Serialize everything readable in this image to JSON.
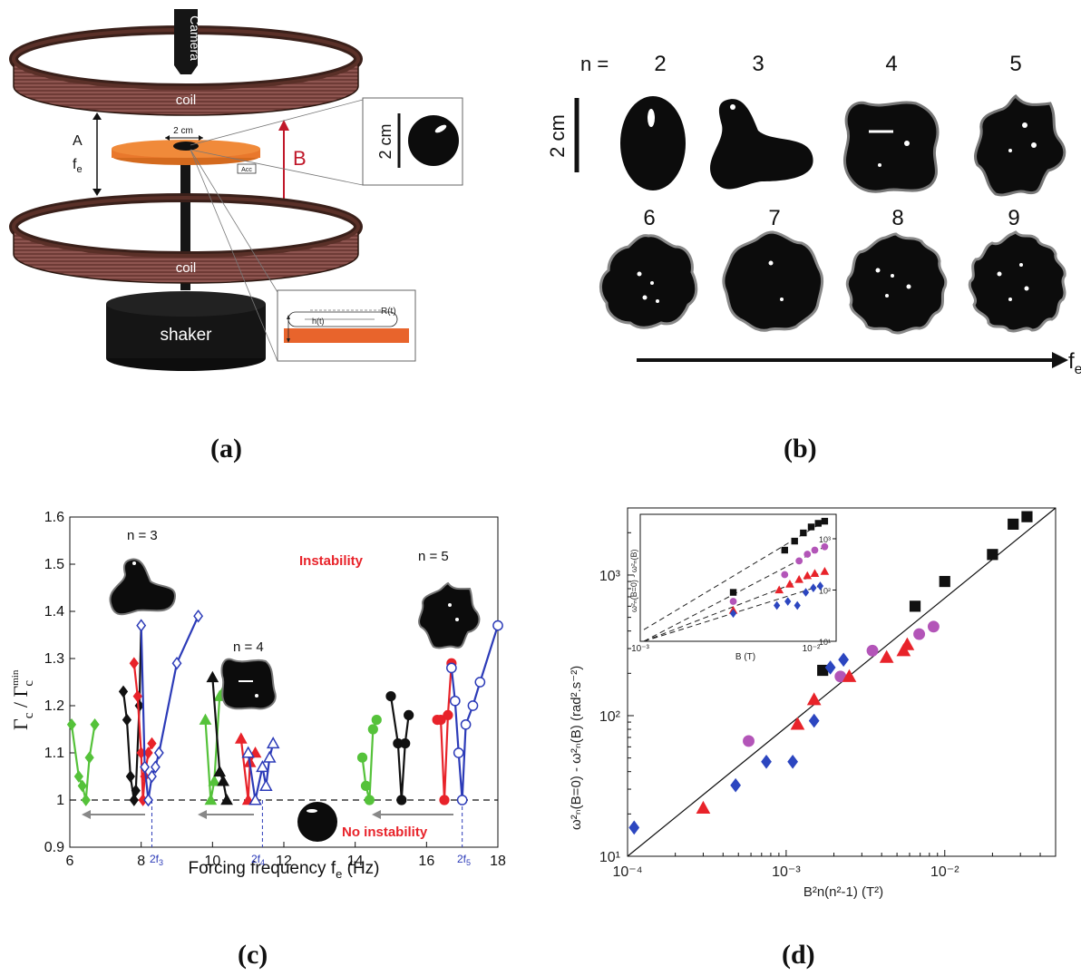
{
  "panels": {
    "a": {
      "caption": "(a)",
      "camera": "Camera",
      "coil_top": "coil",
      "coil_bottom": "coil",
      "shaker": "shaker",
      "plate_size": "2 cm",
      "label_A": "A",
      "label_fe": "f",
      "label_fe_sub": "e",
      "label_B": "B",
      "acc": "Acc",
      "inset_scale": "2 cm",
      "label_h": "h(t)",
      "label_R": "R(t)"
    },
    "b": {
      "caption": "(b)",
      "n_label": "n =",
      "scale": "2 cm",
      "modes_row1": [
        "2",
        "3",
        "4",
        "5"
      ],
      "modes_row2": [
        "6",
        "7",
        "8",
        "9"
      ],
      "axis_label": "f",
      "axis_label_sub": "e"
    },
    "c": {
      "caption": "(c)",
      "xlabel": "Forcing frequency f",
      "xlabel_sub": "e",
      "xlabel_unit": " (Hz)",
      "ylabel_main": "Γ",
      "ylabel_sub": "c",
      "ylabel_sep": " / Γ",
      "ylabel_sup": "min",
      "ylabel_sub2": "c",
      "yticks": [
        "0.9",
        "1",
        "1.1",
        "1.2",
        "1.3",
        "1.4",
        "1.5",
        "1.6"
      ],
      "xticks": [
        "6",
        "8",
        "10",
        "12",
        "14",
        "16",
        "18"
      ],
      "instability": "Instability",
      "no_instability": "No instability",
      "n3": "n = 3",
      "n4": "n = 4",
      "n5": "n = 5",
      "mark_2f3": "2f",
      "mark_2f3_sub": "3",
      "mark_2f4": "2f",
      "mark_2f4_sub": "4",
      "mark_2f5": "2f",
      "mark_2f5_sub": "5",
      "colors": {
        "green": "#55c23a",
        "black": "#111111",
        "red": "#e8232a",
        "blue": "#2c3bb8"
      }
    },
    "d": {
      "caption": "(d)",
      "xlabel": "B²n(n²-1)  (T²)",
      "ylabel": "ω²ₙ(B=0) - ω²ₙ(B)    (rad².s⁻²)",
      "xticks": [
        "10⁻⁴",
        "10⁻³",
        "10⁻²"
      ],
      "yticks": [
        "10¹",
        "10²",
        "10³"
      ],
      "inset": {
        "xlabel": "B  (T)",
        "ylabel": "ω²ₙ(B=0) - ω²ₙ(B)",
        "xticks": [
          "10⁻³",
          "10⁻²"
        ],
        "yticks": [
          "10¹",
          "10²",
          "10³"
        ]
      },
      "colors": {
        "black": "#111111",
        "magenta": "#b355b8",
        "red": "#e8232a",
        "blue": "#2c46c0"
      }
    }
  },
  "chart_data": [
    {
      "type": "line",
      "title": "",
      "xlabel": "Forcing frequency fe (Hz)",
      "ylabel": "Γc / Γc^min",
      "xlim": [
        6,
        18
      ],
      "ylim": [
        0.9,
        1.6
      ],
      "xticks": [
        6,
        8,
        10,
        12,
        14,
        16,
        18
      ],
      "yticks": [
        0.9,
        1.0,
        1.1,
        1.2,
        1.3,
        1.4,
        1.5,
        1.6
      ],
      "reference_line": {
        "y": 1.0,
        "style": "dashed"
      },
      "series": [
        {
          "color": "#55c23a",
          "marker": "diamond",
          "points": [
            [
              6.05,
              1.16
            ],
            [
              6.25,
              1.05
            ],
            [
              6.35,
              1.03
            ],
            [
              6.45,
              1.0
            ],
            [
              6.55,
              1.09
            ],
            [
              6.7,
              1.16
            ]
          ]
        },
        {
          "color": "#111111",
          "marker": "diamond",
          "points": [
            [
              7.5,
              1.23
            ],
            [
              7.6,
              1.17
            ],
            [
              7.7,
              1.05
            ],
            [
              7.8,
              1.0
            ],
            [
              7.85,
              1.02
            ],
            [
              7.95,
              1.2
            ],
            [
              8.0,
              1.37
            ]
          ]
        },
        {
          "color": "#e8232a",
          "marker": "diamond",
          "points": [
            [
              7.8,
              1.29
            ],
            [
              7.9,
              1.22
            ],
            [
              8.0,
              1.1
            ],
            [
              8.05,
              1.0
            ],
            [
              8.1,
              1.05
            ],
            [
              8.2,
              1.1
            ],
            [
              8.3,
              1.12
            ]
          ]
        },
        {
          "color": "#2c3bb8",
          "marker": "diamond-open",
          "points": [
            [
              8.0,
              1.37
            ],
            [
              8.1,
              1.07
            ],
            [
              8.2,
              1.0
            ],
            [
              8.3,
              1.05
            ],
            [
              8.4,
              1.07
            ],
            [
              8.5,
              1.1
            ],
            [
              9.0,
              1.29
            ],
            [
              9.6,
              1.39
            ]
          ]
        },
        {
          "color": "#55c23a",
          "marker": "triangle",
          "points": [
            [
              9.8,
              1.17
            ],
            [
              9.95,
              1.0
            ],
            [
              10.05,
              1.04
            ],
            [
              10.2,
              1.22
            ],
            [
              10.3,
              1.23
            ]
          ]
        },
        {
          "color": "#111111",
          "marker": "triangle",
          "points": [
            [
              10.0,
              1.26
            ],
            [
              10.2,
              1.06
            ],
            [
              10.3,
              1.04
            ],
            [
              10.4,
              1.0
            ]
          ]
        },
        {
          "color": "#e8232a",
          "marker": "triangle",
          "points": [
            [
              10.8,
              1.13
            ],
            [
              11.0,
              1.0
            ],
            [
              11.05,
              1.08
            ],
            [
              11.2,
              1.1
            ]
          ]
        },
        {
          "color": "#2c3bb8",
          "marker": "triangle-open",
          "points": [
            [
              11.0,
              1.1
            ],
            [
              11.2,
              1.0
            ],
            [
              11.4,
              1.07
            ],
            [
              11.5,
              1.03
            ],
            [
              11.6,
              1.09
            ],
            [
              11.7,
              1.12
            ]
          ]
        },
        {
          "color": "#55c23a",
          "marker": "circle",
          "points": [
            [
              14.2,
              1.09
            ],
            [
              14.3,
              1.03
            ],
            [
              14.4,
              1.0
            ],
            [
              14.5,
              1.15
            ],
            [
              14.6,
              1.17
            ]
          ]
        },
        {
          "color": "#111111",
          "marker": "circle",
          "points": [
            [
              15.0,
              1.22
            ],
            [
              15.2,
              1.12
            ],
            [
              15.3,
              1.0
            ],
            [
              15.4,
              1.12
            ],
            [
              15.5,
              1.18
            ]
          ]
        },
        {
          "color": "#e8232a",
          "marker": "circle",
          "points": [
            [
              16.3,
              1.17
            ],
            [
              16.4,
              1.17
            ],
            [
              16.5,
              1.0
            ],
            [
              16.6,
              1.18
            ],
            [
              16.7,
              1.29
            ]
          ]
        },
        {
          "color": "#2c3bb8",
          "marker": "circle-open",
          "points": [
            [
              16.7,
              1.28
            ],
            [
              16.8,
              1.21
            ],
            [
              16.9,
              1.1
            ],
            [
              17.0,
              1.0
            ],
            [
              17.1,
              1.16
            ],
            [
              17.3,
              1.2
            ],
            [
              17.5,
              1.25
            ],
            [
              18.0,
              1.37
            ]
          ]
        }
      ]
    },
    {
      "type": "scatter",
      "title": "",
      "xlabel": "B²n(n²-1) (T²)",
      "ylabel": "ωn²(B=0) - ωn²(B) (rad².s⁻²)",
      "xscale": "log",
      "yscale": "log",
      "xlim": [
        0.0001,
        0.05
      ],
      "ylim": [
        10,
        3000
      ],
      "fit_line": {
        "points": [
          [
            0.0001,
            10
          ],
          [
            0.05,
            3500
          ]
        ]
      },
      "series": [
        {
          "color": "#111111",
          "marker": "square",
          "points": [
            [
              0.0017,
              210
            ],
            [
              0.0065,
              600
            ],
            [
              0.01,
              900
            ],
            [
              0.02,
              1400
            ],
            [
              0.027,
              2300
            ],
            [
              0.033,
              2600
            ]
          ]
        },
        {
          "color": "#b355b8",
          "marker": "circle",
          "points": [
            [
              0.00058,
              66
            ],
            [
              0.0022,
              190
            ],
            [
              0.0035,
              290
            ],
            [
              0.0069,
              380
            ],
            [
              0.0085,
              430
            ]
          ]
        },
        {
          "color": "#e8232a",
          "marker": "triangle",
          "points": [
            [
              0.0003,
              22
            ],
            [
              0.00118,
              87
            ],
            [
              0.0015,
              130
            ],
            [
              0.0025,
              190
            ],
            [
              0.0043,
              260
            ],
            [
              0.0055,
              290
            ],
            [
              0.0058,
              320
            ]
          ]
        },
        {
          "color": "#2c46c0",
          "marker": "diamond",
          "points": [
            [
              0.00011,
              16
            ],
            [
              0.00048,
              32
            ],
            [
              0.00075,
              47
            ],
            [
              0.0011,
              47
            ],
            [
              0.0015,
              92
            ],
            [
              0.0019,
              220
            ],
            [
              0.0023,
              250
            ]
          ]
        }
      ]
    },
    {
      "type": "scatter",
      "title": "",
      "xlabel": "B (T)",
      "ylabel": "ωn²(B=0) - ωn²(B)",
      "xscale": "log",
      "yscale": "log",
      "xlim": [
        0.001,
        0.014
      ],
      "ylim": [
        10,
        3000
      ],
      "series": [
        {
          "color": "#111111",
          "marker": "square",
          "points": [
            [
              0.0035,
              90
            ],
            [
              0.007,
              600
            ],
            [
              0.008,
              900
            ],
            [
              0.009,
              1300
            ],
            [
              0.01,
              1700
            ],
            [
              0.011,
              2000
            ],
            [
              0.012,
              2200
            ]
          ]
        },
        {
          "color": "#b355b8",
          "marker": "circle",
          "points": [
            [
              0.0035,
              60
            ],
            [
              0.007,
              200
            ],
            [
              0.0085,
              370
            ],
            [
              0.0095,
              500
            ],
            [
              0.0105,
              600
            ],
            [
              0.012,
              700
            ]
          ]
        },
        {
          "color": "#e8232a",
          "marker": "triangle",
          "points": [
            [
              0.0035,
              40
            ],
            [
              0.0065,
              100
            ],
            [
              0.0075,
              130
            ],
            [
              0.0085,
              160
            ],
            [
              0.0095,
              190
            ],
            [
              0.0105,
              210
            ],
            [
              0.012,
              230
            ]
          ]
        },
        {
          "color": "#2c46c0",
          "marker": "diamond",
          "points": [
            [
              0.0035,
              35
            ],
            [
              0.0063,
              50
            ],
            [
              0.0073,
              60
            ],
            [
              0.0083,
              50
            ],
            [
              0.0093,
              90
            ],
            [
              0.0103,
              110
            ],
            [
              0.0113,
              120
            ]
          ]
        }
      ]
    }
  ]
}
